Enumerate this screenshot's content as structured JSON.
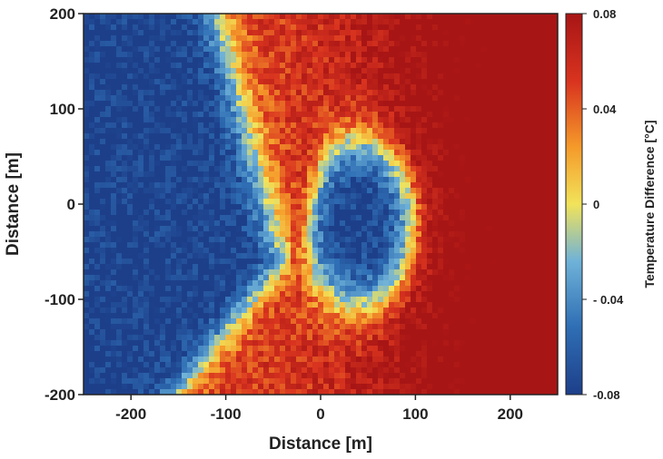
{
  "chart_data": {
    "type": "heatmap",
    "title": "",
    "xlabel": "Distance [m]",
    "ylabel": "Distance [m]",
    "xlim": [
      -250,
      250
    ],
    "ylim": [
      -200,
      200
    ],
    "x_ticks": [
      -200,
      -100,
      0,
      100,
      200
    ],
    "x_tick_labels": [
      "-200",
      "-100",
      "0",
      "100",
      "200"
    ],
    "y_ticks": [
      200,
      100,
      0,
      -100,
      -200
    ],
    "y_tick_labels": [
      "200",
      "100",
      "0",
      "-100",
      "-200"
    ],
    "colorbar": {
      "label": "Temperature Difference [°C]",
      "range": [
        -0.08,
        0.08
      ],
      "ticks": [
        0.08,
        0.04,
        0,
        -0.04,
        -0.08
      ],
      "tick_labels": [
        "0.08",
        "0.04",
        "0",
        "- 0.04",
        "-0.08"
      ],
      "colors": [
        "#1d3f8a",
        "#2f6fb5",
        "#6fb2d8",
        "#f2e35a",
        "#f59a2a",
        "#d9341f",
        "#a81515"
      ]
    },
    "cold_regions": [
      {
        "name": "left cold zone",
        "description": "x < about -100 m above y=-100; boundary slants from x≈-110 at y=200 to x≈-40 at y=-60"
      },
      {
        "name": "central cold lobe",
        "center": [
          40,
          -20
        ],
        "radius_x": 55,
        "radius_y": 85
      }
    ],
    "warm_regions": [
      {
        "name": "right warm zone",
        "description": "x > about 80 m"
      },
      {
        "name": "warm plume",
        "description": "narrow tongue from (-30,-90) up to (-20,200)"
      },
      {
        "name": "bottom warm band",
        "description": "y < about -120 m for x > -150 m"
      }
    ],
    "value_min": -0.08,
    "value_max": 0.08,
    "grid": false
  }
}
